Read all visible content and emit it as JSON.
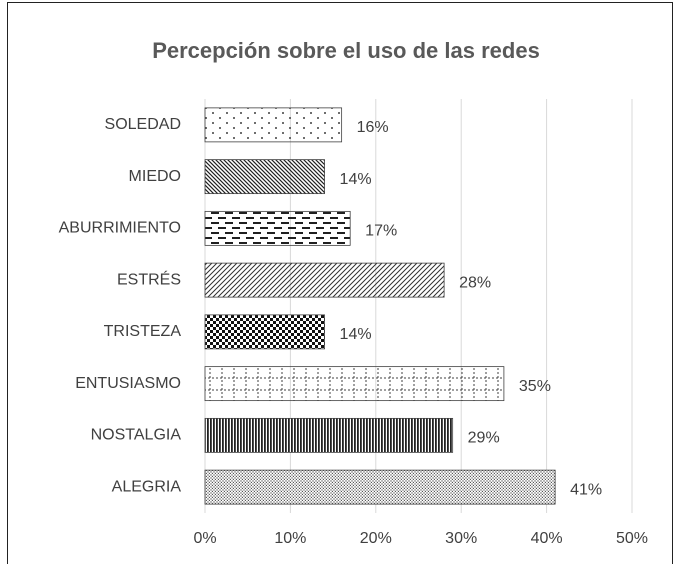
{
  "chart_data": {
    "type": "bar",
    "orientation": "horizontal",
    "title": "Percepción sobre el uso de las redes",
    "categories": [
      "SOLEDAD",
      "MIEDO",
      "ABURRIMIENTO",
      "ESTRÉS",
      "TRISTEZA",
      "ENTUSIASMO",
      "NOSTALGIA",
      "ALEGRIA"
    ],
    "values": [
      16,
      14,
      17,
      28,
      14,
      35,
      29,
      41
    ],
    "value_labels": [
      "16%",
      "14%",
      "17%",
      "28%",
      "14%",
      "35%",
      "29%",
      "41%"
    ],
    "color": "#404040",
    "xlim": [
      0,
      50
    ],
    "xticks": [
      {
        "value": 0,
        "label": "0%"
      },
      {
        "value": 10,
        "label": "10%"
      },
      {
        "value": 20,
        "label": "20%"
      },
      {
        "value": 30,
        "label": "30%"
      },
      {
        "value": 40,
        "label": "40%"
      },
      {
        "value": 50,
        "label": "50%"
      }
    ],
    "grid": true
  }
}
